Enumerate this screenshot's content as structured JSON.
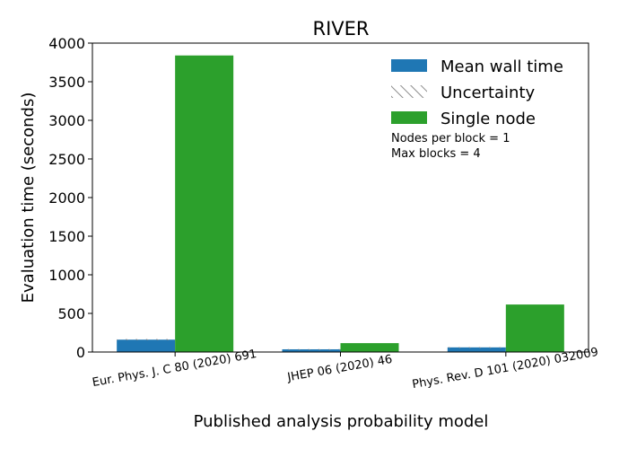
{
  "chart_data": {
    "type": "bar",
    "title": "RIVER",
    "xlabel": "Published analysis probability model",
    "ylabel": "Evaluation time (seconds)",
    "ylim": [
      0,
      4000
    ],
    "yticks": [
      0,
      500,
      1000,
      1500,
      2000,
      2500,
      3000,
      3500,
      4000
    ],
    "categories": [
      "Eur. Phys. J. C 80 (2020) 691",
      "JHEP 06 (2020) 46",
      "Phys. Rev. D 101 (2020) 032009"
    ],
    "series": [
      {
        "name": "Mean wall time",
        "color": "#1f77b4",
        "values": [
          160,
          35,
          60
        ]
      },
      {
        "name": "Single node",
        "color": "#2ca02c",
        "values": [
          3840,
          115,
          615
        ]
      }
    ],
    "uncertainty": {
      "name": "Uncertainty",
      "values": [
        8,
        3,
        3
      ]
    },
    "legend_position": "top-right",
    "notes": [
      "Nodes per block = 1",
      "Max blocks = 4"
    ],
    "grid": false
  }
}
